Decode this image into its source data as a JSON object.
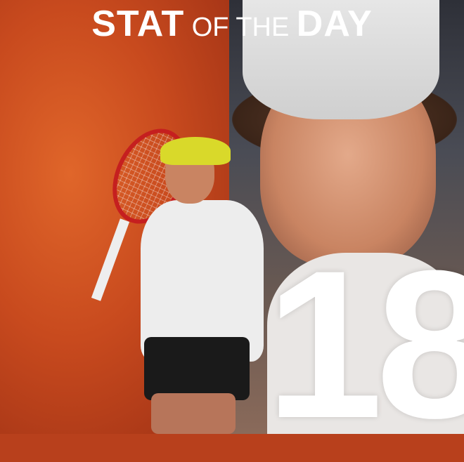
{
  "header": {
    "title_part1": "STAT",
    "title_part2": "OF THE",
    "title_part3": "DAY"
  },
  "stat": {
    "value": "18"
  },
  "colors": {
    "left_background": "#c84a1e",
    "right_background": "#4a4c55",
    "text": "#ffffff"
  }
}
